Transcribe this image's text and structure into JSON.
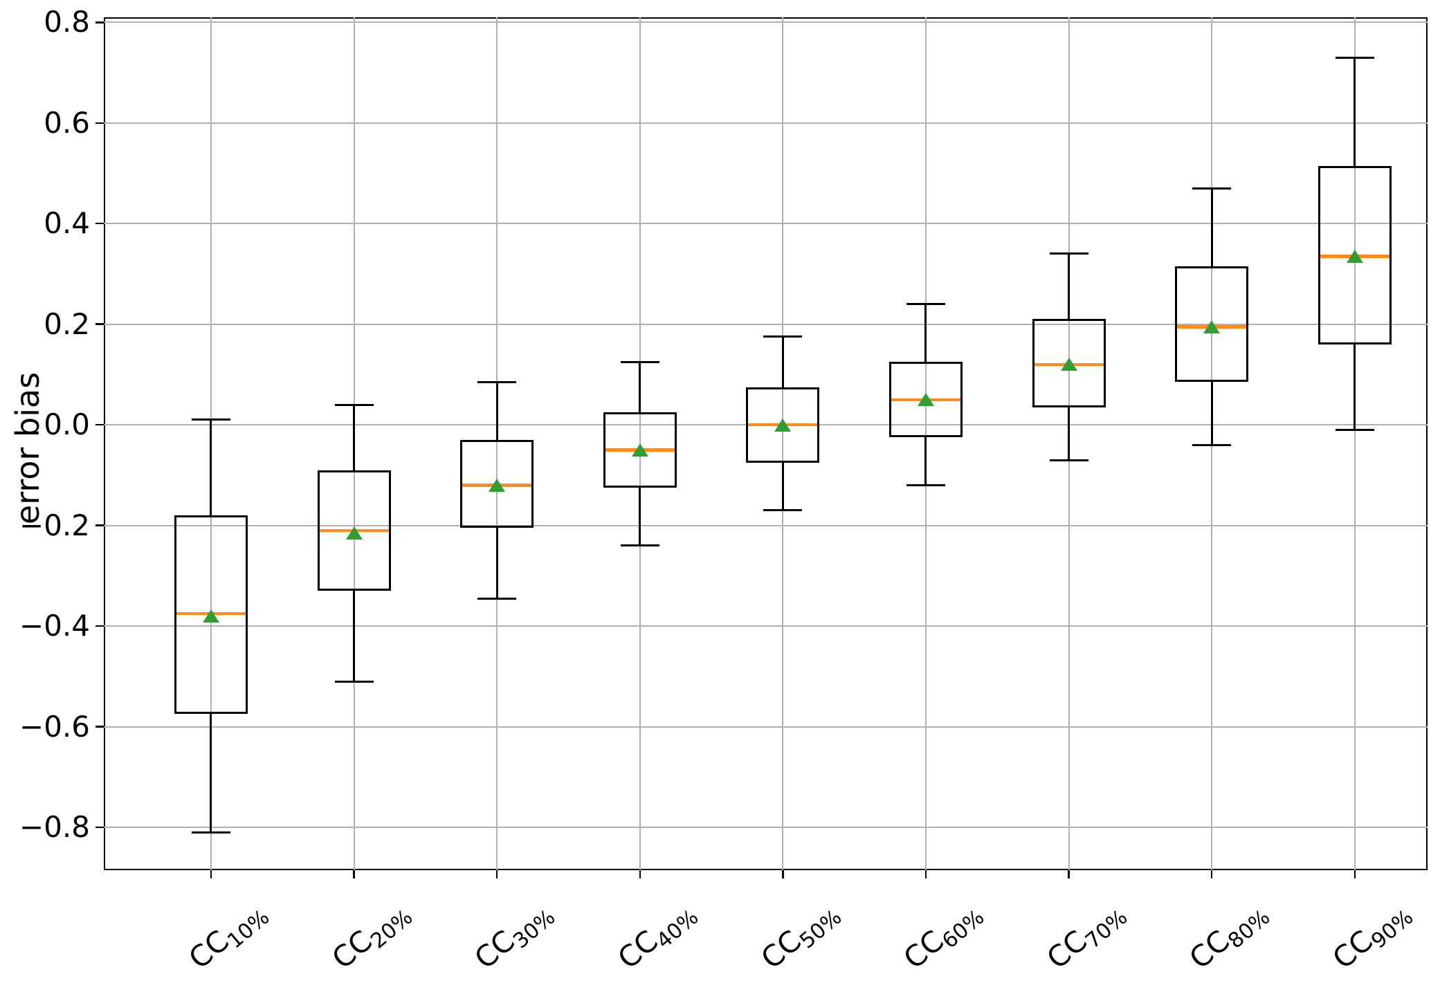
{
  "figure": {
    "background": "#ffffff",
    "ylabel": "error bias"
  },
  "chart_data": {
    "type": "box",
    "title": "",
    "xlabel": "",
    "ylabel": "error bias",
    "ylim": [
      -0.885,
      0.81
    ],
    "grid": true,
    "legend": false,
    "orientation": "vertical",
    "yticks": [
      0.8,
      0.6,
      0.4,
      0.2,
      0.0,
      -0.2,
      -0.4,
      -0.6,
      -0.8
    ],
    "ytick_labels": [
      "0.8",
      "0.6",
      "0.4",
      "0.2",
      "0.0",
      "−0.2",
      "−0.4",
      "−0.6",
      "−0.8"
    ],
    "categories": [
      "CC10%",
      "CC20%",
      "CC30%",
      "CC40%",
      "CC50%",
      "CC60%",
      "CC70%",
      "CC80%",
      "CC90%"
    ],
    "category_rich": [
      {
        "base": "CC",
        "sub": "10%"
      },
      {
        "base": "CC",
        "sub": "20%"
      },
      {
        "base": "CC",
        "sub": "30%"
      },
      {
        "base": "CC",
        "sub": "40%"
      },
      {
        "base": "CC",
        "sub": "50%"
      },
      {
        "base": "CC",
        "sub": "60%"
      },
      {
        "base": "CC",
        "sub": "70%"
      },
      {
        "base": "CC",
        "sub": "80%"
      },
      {
        "base": "CC",
        "sub": "90%"
      }
    ],
    "series": [
      {
        "label": "CC10%",
        "whislo": -0.81,
        "q1": -0.575,
        "med": -0.375,
        "mean": -0.38,
        "q3": -0.18,
        "whishi": 0.01
      },
      {
        "label": "CC20%",
        "whislo": -0.51,
        "q1": -0.33,
        "med": -0.21,
        "mean": -0.215,
        "q3": -0.09,
        "whishi": 0.04
      },
      {
        "label": "CC30%",
        "whislo": -0.345,
        "q1": -0.205,
        "med": -0.12,
        "mean": -0.12,
        "q3": -0.03,
        "whishi": 0.085
      },
      {
        "label": "CC40%",
        "whislo": -0.24,
        "q1": -0.125,
        "med": -0.05,
        "mean": -0.05,
        "q3": 0.025,
        "whishi": 0.125
      },
      {
        "label": "CC50%",
        "whislo": -0.17,
        "q1": -0.075,
        "med": 0.0,
        "mean": 0.0,
        "q3": 0.075,
        "whishi": 0.175
      },
      {
        "label": "CC60%",
        "whislo": -0.12,
        "q1": -0.025,
        "med": 0.05,
        "mean": 0.05,
        "q3": 0.125,
        "whishi": 0.24
      },
      {
        "label": "CC70%",
        "whislo": -0.07,
        "q1": 0.035,
        "med": 0.12,
        "mean": 0.12,
        "q3": 0.21,
        "whishi": 0.34
      },
      {
        "label": "CC80%",
        "whislo": -0.04,
        "q1": 0.085,
        "med": 0.195,
        "mean": 0.195,
        "q3": 0.315,
        "whishi": 0.47
      },
      {
        "label": "CC90%",
        "whislo": -0.01,
        "q1": 0.16,
        "med": 0.335,
        "mean": 0.335,
        "q3": 0.515,
        "whishi": 0.73
      }
    ],
    "marker": {
      "mean_shape": "triangle-up"
    },
    "colors": {
      "box_edge": "#000000",
      "whisker": "#000000",
      "median": "#ff8c1a",
      "mean_marker": "#2f9e33",
      "grid": "#b0b0b0",
      "spine": "#000000",
      "text": "#000000",
      "background": "#ffffff"
    }
  }
}
